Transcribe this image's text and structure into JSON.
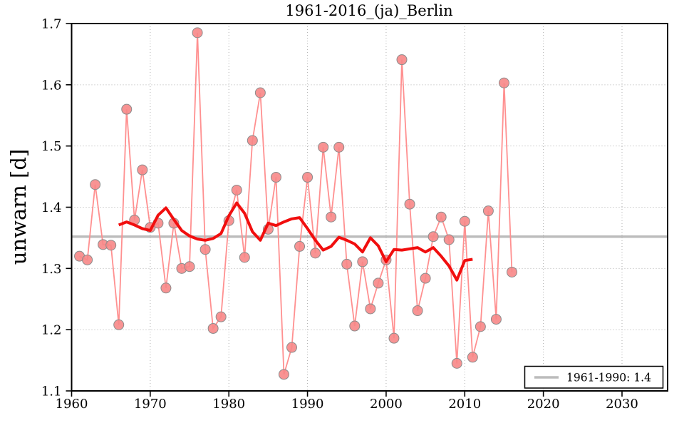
{
  "figure": {
    "background": "#ffffff"
  },
  "chart_data": {
    "type": "line",
    "title": "1961-2016_(ja)_Berlin",
    "xlabel": "",
    "ylabel": "unwarn [d]",
    "xlim": [
      1960,
      2035.8
    ],
    "ylim": [
      1.1,
      1.7
    ],
    "x_ticks": [
      1960,
      1970,
      1980,
      1990,
      2000,
      2010,
      2020,
      2030
    ],
    "y_ticks": [
      1.1,
      1.2,
      1.3,
      1.4,
      1.5,
      1.6,
      1.7
    ],
    "grid": "dotted",
    "grid_color": "#b0b0b0",
    "legend": {
      "position": "lower right",
      "entries": [
        {
          "label": "1961-1990: 1.4",
          "color": "#bcbcbc"
        }
      ]
    },
    "reference_line": {
      "name": "1961-1990 mean",
      "value": 1.352,
      "color": "#bcbcbc",
      "width": 3.5
    },
    "series": [
      {
        "name": "annual",
        "style": "line+markers",
        "line_color": "#ff9090",
        "line_width": 1.8,
        "marker": "circle",
        "marker_size": 7,
        "marker_fill": "#f78787",
        "marker_edge": "#8c8c8c",
        "x": [
          1961,
          1962,
          1963,
          1964,
          1965,
          1966,
          1967,
          1968,
          1969,
          1970,
          1971,
          1972,
          1973,
          1974,
          1975,
          1976,
          1977,
          1978,
          1979,
          1980,
          1981,
          1982,
          1983,
          1984,
          1985,
          1986,
          1987,
          1988,
          1989,
          1990,
          1991,
          1992,
          1993,
          1994,
          1995,
          1996,
          1997,
          1998,
          1999,
          2000,
          2001,
          2002,
          2003,
          2004,
          2005,
          2006,
          2007,
          2008,
          2009,
          2010,
          2011,
          2012,
          2013,
          2014,
          2015,
          2016
        ],
        "values": [
          1.32,
          1.314,
          1.437,
          1.339,
          1.338,
          1.208,
          1.56,
          1.379,
          1.461,
          1.367,
          1.374,
          1.268,
          1.374,
          1.3,
          1.303,
          1.685,
          1.331,
          1.202,
          1.221,
          1.378,
          1.428,
          1.318,
          1.509,
          1.587,
          1.364,
          1.449,
          1.127,
          1.171,
          1.336,
          1.449,
          1.325,
          1.498,
          1.384,
          1.498,
          1.307,
          1.206,
          1.311,
          1.234,
          1.276,
          1.314,
          1.186,
          1.641,
          1.405,
          1.231,
          1.284,
          1.352,
          1.384,
          1.347,
          1.145,
          1.377,
          1.155,
          1.205,
          1.394,
          1.217,
          1.603,
          1.294
        ]
      },
      {
        "name": "smoothed",
        "style": "line",
        "line_color": "#f10e0e",
        "line_width": 4,
        "x": [
          1966,
          1967,
          1968,
          1969,
          1970,
          1971,
          1972,
          1973,
          1974,
          1975,
          1976,
          1977,
          1978,
          1979,
          1980,
          1981,
          1982,
          1983,
          1984,
          1985,
          1986,
          1987,
          1988,
          1989,
          1990,
          1991,
          1992,
          1993,
          1994,
          1995,
          1996,
          1997,
          1998,
          1999,
          2000,
          2001,
          2002,
          2003,
          2004,
          2005,
          2006,
          2007,
          2008,
          2009,
          2010,
          2011
        ],
        "values": [
          1.371,
          1.376,
          1.371,
          1.365,
          1.362,
          1.387,
          1.399,
          1.38,
          1.362,
          1.353,
          1.348,
          1.346,
          1.349,
          1.357,
          1.386,
          1.407,
          1.39,
          1.36,
          1.346,
          1.374,
          1.37,
          1.376,
          1.381,
          1.383,
          1.365,
          1.346,
          1.33,
          1.336,
          1.351,
          1.346,
          1.34,
          1.327,
          1.35,
          1.337,
          1.311,
          1.331,
          1.33,
          1.332,
          1.334,
          1.327,
          1.334,
          1.32,
          1.304,
          1.281,
          1.313,
          1.315
        ]
      }
    ]
  }
}
